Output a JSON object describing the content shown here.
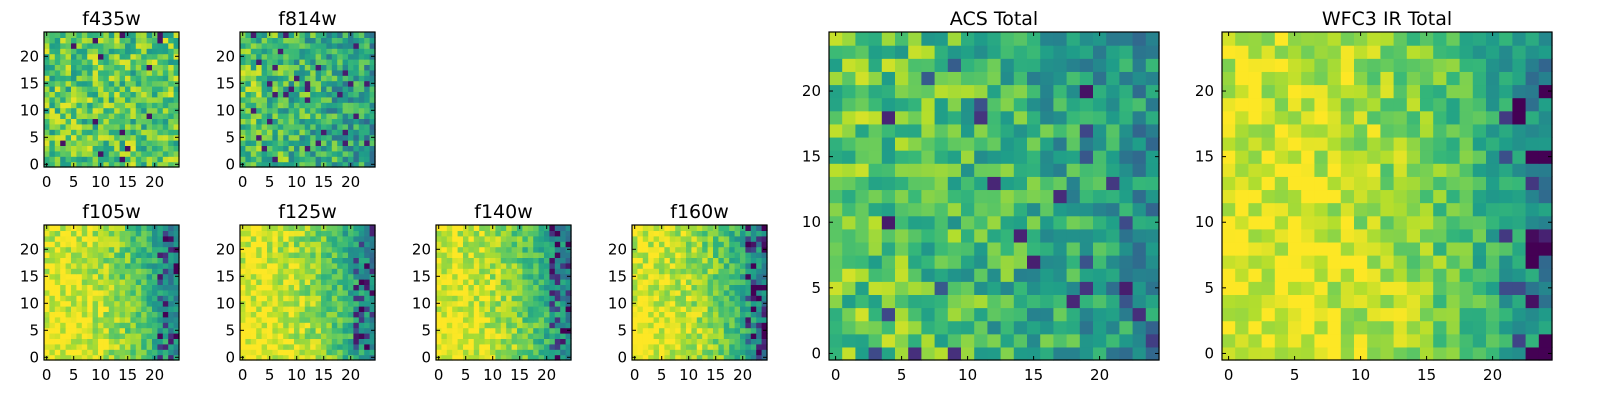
{
  "chart_data": [
    {
      "type": "heatmap",
      "title": "f435w",
      "x_ticks": [
        "0",
        "5",
        "10",
        "15",
        "20"
      ],
      "y_ticks": [
        "0",
        "5",
        "10",
        "15",
        "20"
      ],
      "xlim": [
        -0.5,
        24.5
      ],
      "ylim": [
        -0.5,
        24.5
      ],
      "grid": false,
      "colormap": "viridis",
      "grid_size": 25,
      "trend": "mostly uniform with random dark pixels",
      "seed": 11
    },
    {
      "type": "heatmap",
      "title": "f814w",
      "x_ticks": [
        "0",
        "5",
        "10",
        "15",
        "20"
      ],
      "y_ticks": [
        "0",
        "5",
        "10",
        "15",
        "20"
      ],
      "xlim": [
        -0.5,
        24.5
      ],
      "ylim": [
        -0.5,
        24.5
      ],
      "grid": false,
      "colormap": "viridis",
      "grid_size": 25,
      "trend": "mostly uniform, slightly darker toward right",
      "seed": 23
    },
    {
      "type": "heatmap",
      "title": "f105w",
      "x_ticks": [
        "0",
        "5",
        "10",
        "15",
        "20"
      ],
      "y_ticks": [
        "0",
        "5",
        "10",
        "15",
        "20"
      ],
      "xlim": [
        -0.5,
        24.5
      ],
      "ylim": [
        -0.5,
        24.5
      ],
      "grid": false,
      "colormap": "viridis",
      "grid_size": 25,
      "trend": "bright yellow left, darkening to blue on right edge",
      "seed": 37
    },
    {
      "type": "heatmap",
      "title": "f125w",
      "x_ticks": [
        "0",
        "5",
        "10",
        "15",
        "20"
      ],
      "y_ticks": [
        "0",
        "5",
        "10",
        "15",
        "20"
      ],
      "xlim": [
        -0.5,
        24.5
      ],
      "ylim": [
        -0.5,
        24.5
      ],
      "grid": false,
      "colormap": "viridis",
      "grid_size": 25,
      "trend": "bright yellow left, darkening to blue on right edge",
      "seed": 41
    },
    {
      "type": "heatmap",
      "title": "f140w",
      "x_ticks": [
        "0",
        "5",
        "10",
        "15",
        "20"
      ],
      "y_ticks": [
        "0",
        "5",
        "10",
        "15",
        "20"
      ],
      "xlim": [
        -0.5,
        24.5
      ],
      "ylim": [
        -0.5,
        24.5
      ],
      "grid": false,
      "colormap": "viridis",
      "grid_size": 25,
      "trend": "bright yellow left, darkening to blue on right edge",
      "seed": 53
    },
    {
      "type": "heatmap",
      "title": "f160w",
      "x_ticks": [
        "0",
        "5",
        "10",
        "15",
        "20"
      ],
      "y_ticks": [
        "0",
        "5",
        "10",
        "15",
        "20"
      ],
      "xlim": [
        -0.5,
        24.5
      ],
      "ylim": [
        -0.5,
        24.5
      ],
      "grid": false,
      "colormap": "viridis",
      "grid_size": 25,
      "trend": "bright yellow left, darkening to blue on right edge",
      "seed": 67
    },
    {
      "type": "heatmap",
      "title": "ACS Total",
      "x_ticks": [
        "0",
        "5",
        "10",
        "15",
        "20"
      ],
      "y_ticks": [
        "0",
        "5",
        "10",
        "15",
        "20"
      ],
      "xlim": [
        -0.5,
        24.5
      ],
      "ylim": [
        -0.5,
        24.5
      ],
      "grid": false,
      "colormap": "viridis",
      "grid_size": 25,
      "trend": "mostly green-yellow, darker patches on right",
      "seed": 79
    },
    {
      "type": "heatmap",
      "title": "WFC3 IR Total",
      "x_ticks": [
        "0",
        "5",
        "10",
        "15",
        "20"
      ],
      "y_ticks": [
        "0",
        "5",
        "10",
        "15",
        "20"
      ],
      "xlim": [
        -0.5,
        24.5
      ],
      "ylim": [
        -0.5,
        24.5
      ],
      "grid": false,
      "colormap": "viridis",
      "grid_size": 25,
      "trend": "bright yellow left, darkening to blue on right edge",
      "seed": 97
    }
  ]
}
